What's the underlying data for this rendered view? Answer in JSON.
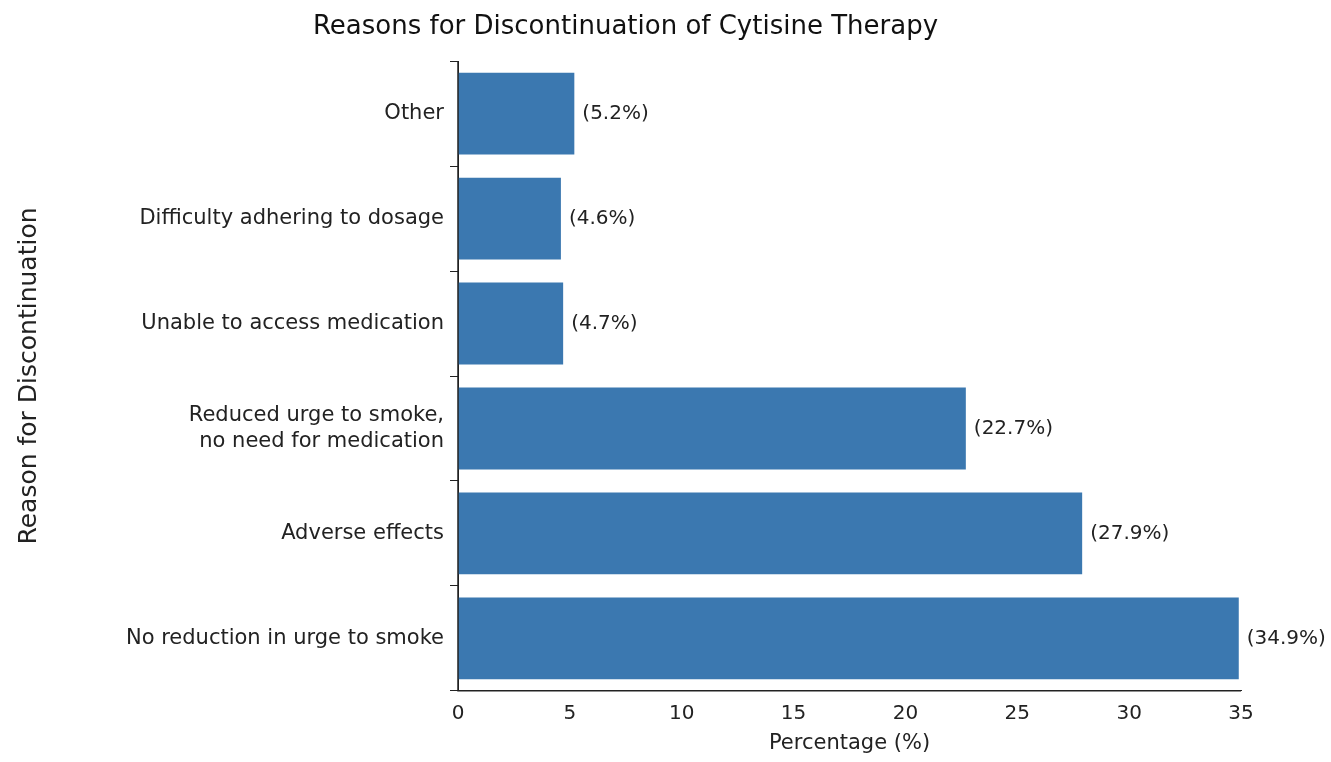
{
  "chart_data": {
    "type": "bar",
    "orientation": "horizontal",
    "title": "Reasons for Discontinuation of Cytisine Therapy",
    "xlabel": "Percentage (%)",
    "ylabel": "Reason for Discontinuation",
    "categories": [
      "Other",
      "Difficulty adhering to dosage",
      "Unable to access medication",
      "Reduced urge to smoke,\nno need for medication",
      "Adverse effects",
      "No reduction in urge to smoke"
    ],
    "values": [
      5.2,
      4.6,
      4.7,
      22.7,
      27.9,
      34.9
    ],
    "value_labels": [
      "(5.2%)",
      "(4.6%)",
      "(4.7%)",
      "(22.7%)",
      "(27.9%)",
      "(34.9%)"
    ],
    "color": "#3b78b0",
    "xlim": [
      0,
      35
    ],
    "xticks": [
      0,
      5,
      10,
      15,
      20,
      25,
      30,
      35
    ],
    "grid": false,
    "legend": false
  }
}
